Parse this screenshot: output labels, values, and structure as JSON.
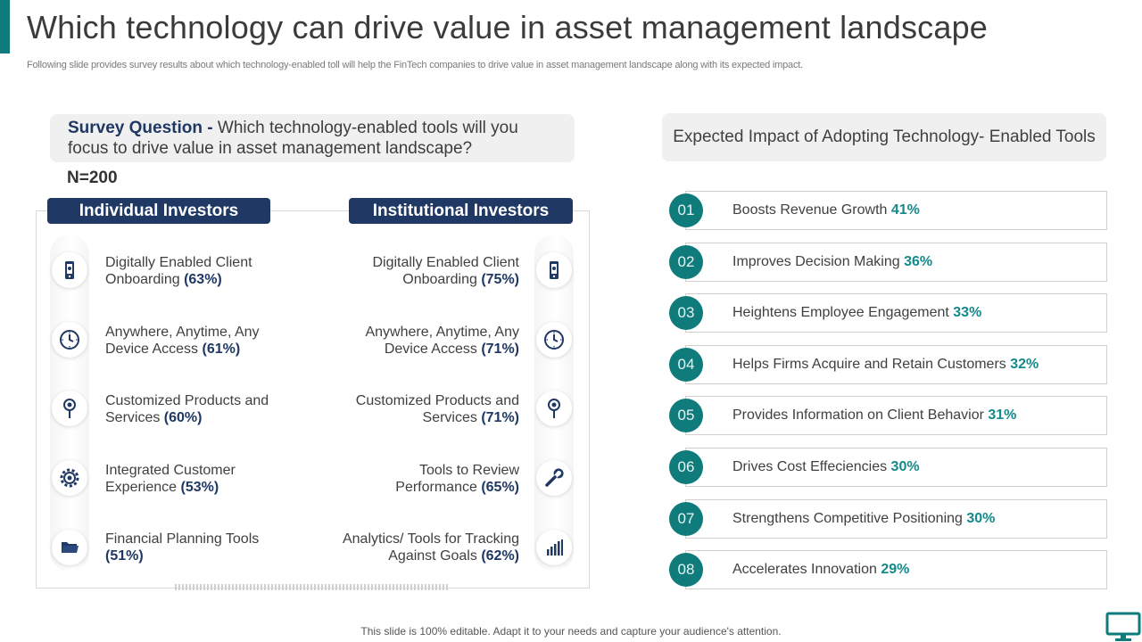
{
  "header": {
    "title": "Which technology can drive value in asset management landscape",
    "subtitle": "Following slide provides survey results about which technology-enabled toll will help the FinTech companies to drive value in asset management landscape along with its expected impact."
  },
  "survey": {
    "question_label": "Survey Question -",
    "question_text": " Which technology-enabled tools will you focus to drive value in asset management landscape?",
    "n_label": "N=200"
  },
  "individual": {
    "title": "Individual Investors",
    "items": [
      {
        "icon": "mobile-phone-icon",
        "label": "Digitally Enabled Client Onboarding ",
        "pct": "(63%)"
      },
      {
        "icon": "clock-icon",
        "label": "Anywhere, Anytime, Any Device Access ",
        "pct": "(61%)"
      },
      {
        "icon": "location-pin-icon",
        "label": "Customized Products and Services ",
        "pct": "(60%)"
      },
      {
        "icon": "gear-icon",
        "label": "Integrated Customer Experience ",
        "pct": "(53%)"
      },
      {
        "icon": "folder-icon",
        "label": "Financial Planning Tools ",
        "pct": "(51%)"
      }
    ]
  },
  "institutional": {
    "title": "Institutional Investors",
    "items": [
      {
        "icon": "mobile-phone-icon",
        "label": "Digitally Enabled Client Onboarding ",
        "pct": "(75%)"
      },
      {
        "icon": "clock-icon",
        "label": "Anywhere, Anytime, Any Device Access ",
        "pct": "(71%)"
      },
      {
        "icon": "location-pin-icon",
        "label": "Customized Products and Services ",
        "pct": "(71%)"
      },
      {
        "icon": "wrench-icon",
        "label": "Tools to Review Performance ",
        "pct": "(65%)"
      },
      {
        "icon": "bar-chart-icon",
        "label": "Analytics/ Tools for Tracking Against Goals ",
        "pct": "(62%)"
      }
    ]
  },
  "impact": {
    "header": "Expected Impact of Adopting Technology- Enabled Tools",
    "rows": [
      {
        "num": "01",
        "label": "Boosts Revenue  Growth ",
        "pct": "41%"
      },
      {
        "num": "02",
        "label": "Improves  Decision Making ",
        "pct": "36%"
      },
      {
        "num": "03",
        "label": "Heightens  Employee Engagement ",
        "pct": "33%"
      },
      {
        "num": "04",
        "label": "Helps Firms Acquire and Retain Customers ",
        "pct": "32%"
      },
      {
        "num": "05",
        "label": "Provides Information  on Client Behavior ",
        "pct": "31%"
      },
      {
        "num": "06",
        "label": "Drives Cost Effeciencies ",
        "pct": "30%"
      },
      {
        "num": "07",
        "label": "Strengthens  Competitive Positioning ",
        "pct": "30%"
      },
      {
        "num": "08",
        "label": "Accelerates Innovation  ",
        "pct": "29%"
      }
    ]
  },
  "colors": {
    "accent_teal": "#0f7b7b",
    "navy": "#1f3864",
    "pct_teal": "#148a8a"
  },
  "footer": {
    "text": "This slide is 100% editable. Adapt it to your needs and capture your audience's attention.",
    "icon": "monitor-icon"
  }
}
